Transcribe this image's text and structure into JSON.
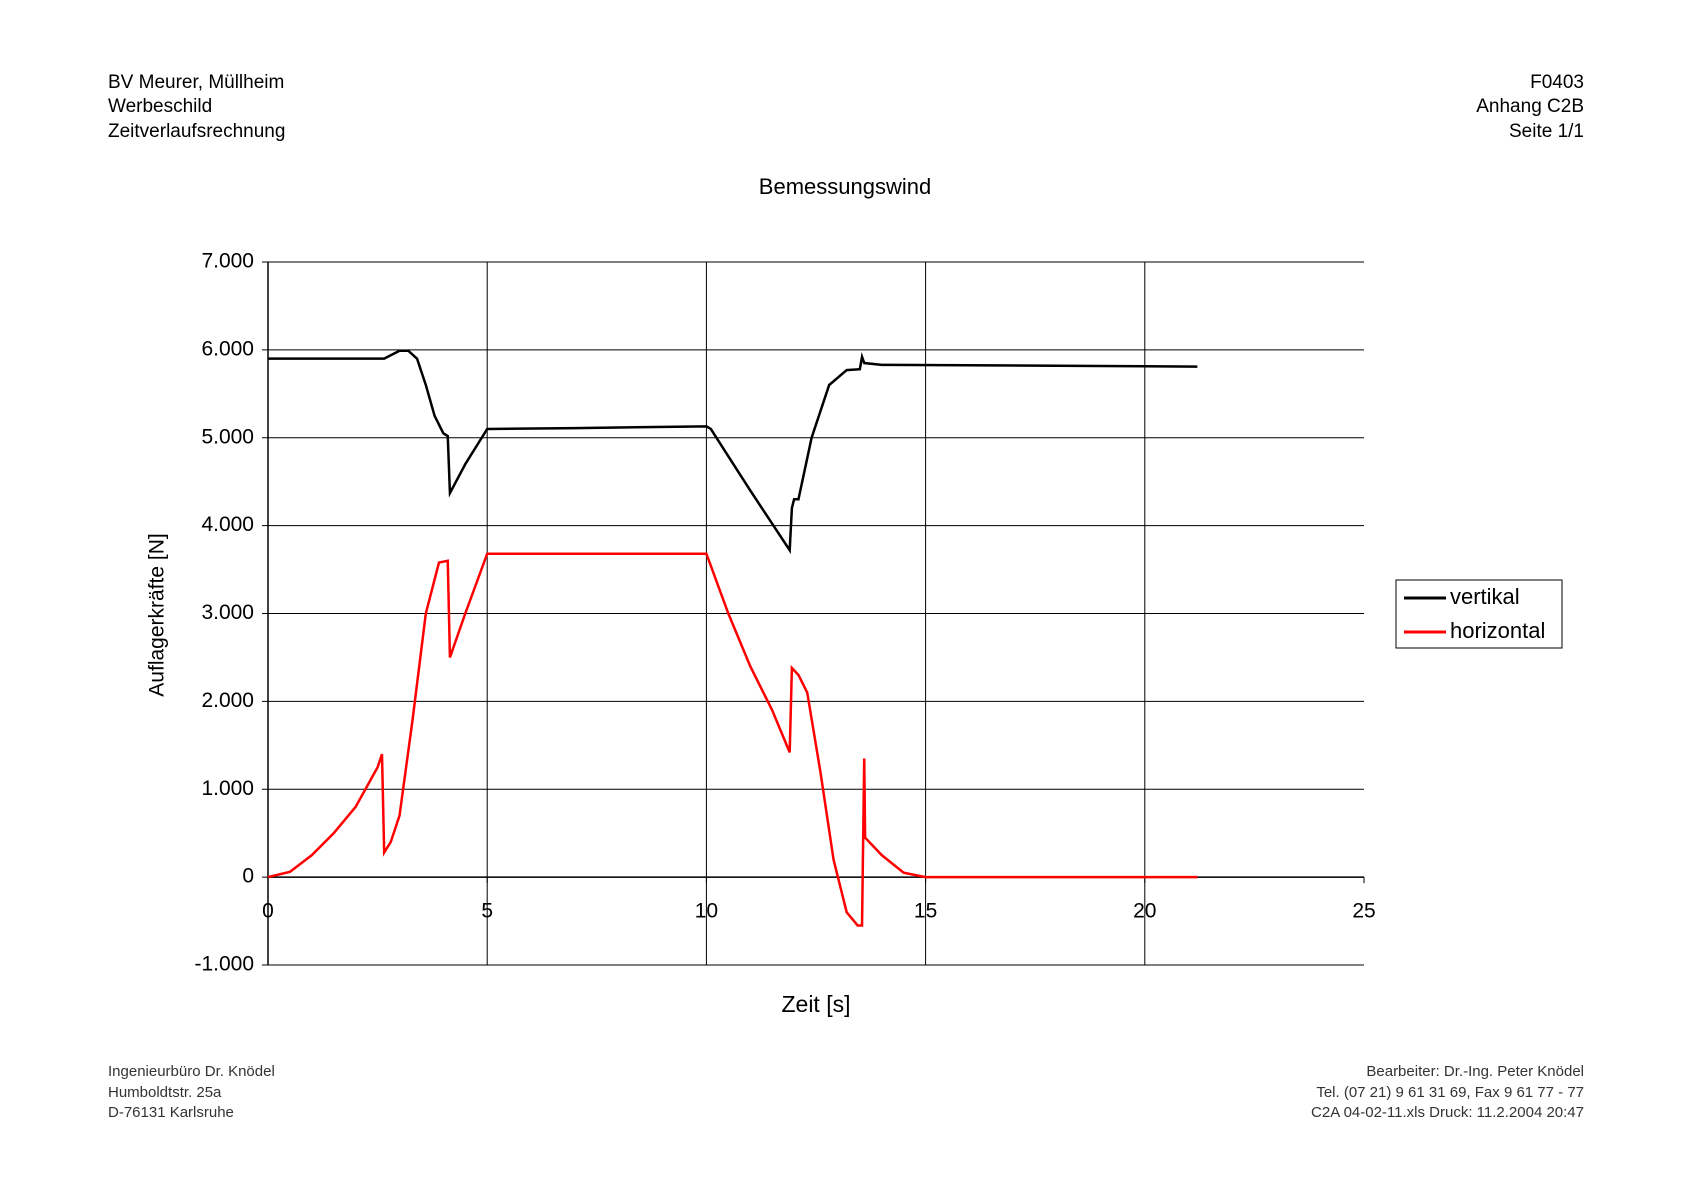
{
  "header": {
    "left": [
      "BV Meurer, Müllheim",
      "Werbeschild",
      "Zeitverlaufsrechnung"
    ],
    "right": [
      "F0403",
      "Anhang C2B",
      "Seite 1/1"
    ]
  },
  "footer": {
    "left": [
      "Ingenieurbüro Dr. Knödel",
      "Humboldtstr. 25a",
      "D-76131 Karlsruhe"
    ],
    "right": [
      "Bearbeiter: Dr.-Ing. Peter Knödel",
      "Tel. (07 21) 9 61 31 69, Fax 9 61 77 - 77",
      "C2A 04-02-11.xls Druck: 11.2.2004 20:47"
    ]
  },
  "chart_data": {
    "type": "line",
    "title": "Bemessungswind",
    "x_label": "Zeit [s]",
    "y_label": "Auflagerkräfte [N]",
    "xlim": [
      0,
      25
    ],
    "xticks": [
      0,
      5,
      10,
      15,
      20,
      25
    ],
    "ylim": [
      -1000,
      7000
    ],
    "yticks": [
      {
        "value": -1000,
        "label": "-1.000"
      },
      {
        "value": 0,
        "label": "0"
      },
      {
        "value": 1000,
        "label": "1.000"
      },
      {
        "value": 2000,
        "label": "2.000"
      },
      {
        "value": 3000,
        "label": "3.000"
      },
      {
        "value": 4000,
        "label": "4.000"
      },
      {
        "value": 5000,
        "label": "5.000"
      },
      {
        "value": 6000,
        "label": "6.000"
      },
      {
        "value": 7000,
        "label": "7.000"
      }
    ],
    "grid": true,
    "legend": "right",
    "series": [
      {
        "name": "vertikal",
        "color": "#000000",
        "x": [
          0,
          1,
          2,
          2.65,
          3.0,
          3.2,
          3.4,
          3.6,
          3.8,
          4.0,
          4.1,
          4.15,
          4.5,
          5.0,
          7,
          10,
          10.1,
          11,
          11.9,
          11.95,
          12.0,
          12.1,
          12.4,
          12.8,
          13.2,
          13.5,
          13.55,
          13.6,
          14,
          18,
          21.2
        ],
        "values": [
          5900,
          5900,
          5900,
          5900,
          5990,
          5990,
          5900,
          5600,
          5250,
          5050,
          5020,
          4370,
          4700,
          5100,
          5110,
          5130,
          5100,
          4400,
          3720,
          4200,
          4300,
          4300,
          5000,
          5600,
          5770,
          5780,
          5920,
          5850,
          5830,
          5820,
          5810
        ]
      },
      {
        "name": "horizontal",
        "color": "#ff0000",
        "x": [
          0,
          0.5,
          1,
          1.5,
          2,
          2.5,
          2.6,
          2.65,
          2.8,
          3.0,
          3.3,
          3.6,
          3.9,
          4.1,
          4.15,
          4.5,
          5.0,
          10,
          10.5,
          11,
          11.5,
          11.9,
          11.95,
          12.1,
          12.3,
          12.6,
          12.9,
          13.2,
          13.45,
          13.55,
          13.6,
          13.62,
          14.0,
          14.5,
          15,
          21.2
        ],
        "values": [
          0,
          60,
          250,
          500,
          800,
          1250,
          1400,
          280,
          400,
          700,
          1800,
          3000,
          3580,
          3600,
          2500,
          3000,
          3680,
          3680,
          3000,
          2400,
          1900,
          1420,
          2380,
          2300,
          2100,
          1200,
          200,
          -400,
          -550,
          -550,
          1350,
          450,
          250,
          50,
          0,
          0
        ]
      }
    ]
  }
}
